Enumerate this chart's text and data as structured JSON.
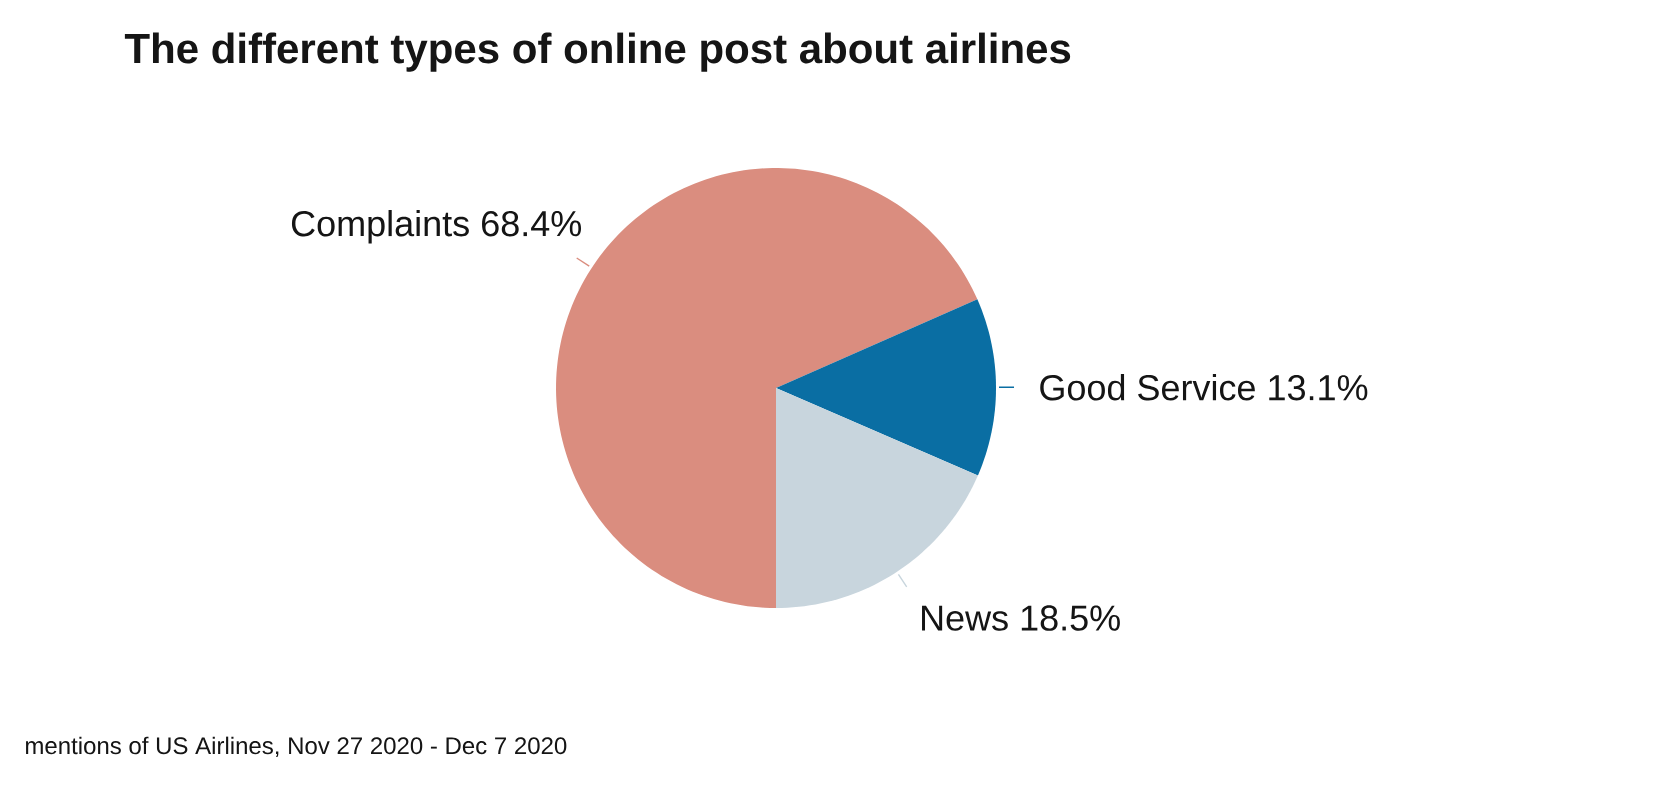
{
  "chart_data": {
    "type": "pie",
    "title": "The different types of online post about airlines",
    "categories": [
      "Complaints",
      "Good Service",
      "News"
    ],
    "values": [
      68.4,
      13.1,
      18.5
    ],
    "colors": [
      "#da8d7f",
      "#0a6ea3",
      "#c8d5dd"
    ],
    "value_labels": [
      "68.4%",
      "13.1%",
      "18.5%"
    ],
    "annotations": [
      "mentions of US Airlines, Nov 27 2020 - Dec 7 2020"
    ]
  }
}
